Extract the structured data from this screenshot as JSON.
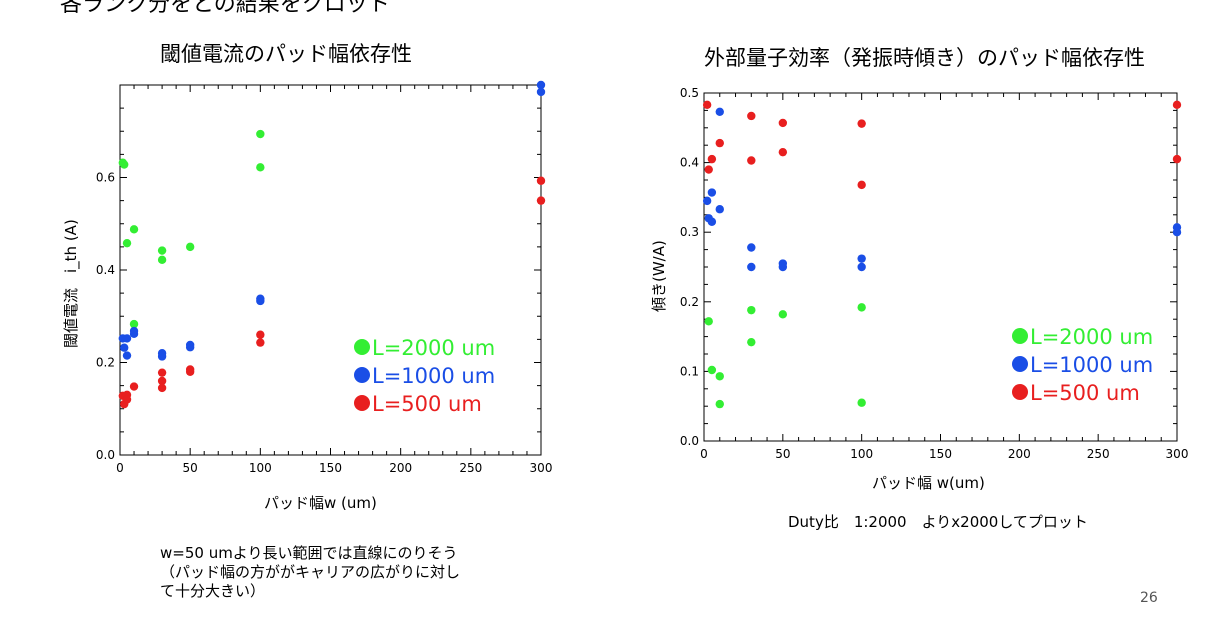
{
  "slide": {
    "top_fragment": "各ランク分をとの結果をクロット",
    "page_number": "26",
    "note_left": [
      "w=50 umより長い範囲では直線にのりそう",
      "（パッド幅の方ががキャリアの広がりに対し",
      "て十分大きい）"
    ],
    "note_right": "Duty比　1:2000　よりx2000してプロット"
  },
  "chart_data": [
    {
      "type": "scatter",
      "title": "閾値電流のパッド幅依存性",
      "xlabel": "パッド幅w (um)",
      "ylabel": "閾値電流　i_th (A)",
      "xlim": [
        0,
        300
      ],
      "ylim": [
        0,
        0.8
      ],
      "xticks": [
        0,
        50,
        100,
        150,
        200,
        250,
        300
      ],
      "yticks": [
        0.0,
        0.2,
        0.4,
        0.6
      ],
      "ytick_labels": [
        "0.0",
        "0.2",
        "0.4",
        "0.6"
      ],
      "grid": false,
      "legend_position": "bottom-right",
      "series": [
        {
          "name": "L=2000 um",
          "color": "#33ee33",
          "x": [
            2,
            3,
            5,
            10,
            10,
            30,
            30,
            50,
            100,
            100
          ],
          "y": [
            0.632,
            0.628,
            0.458,
            0.488,
            0.283,
            0.442,
            0.422,
            0.45,
            0.694,
            0.622
          ]
        },
        {
          "name": "L=1000 um",
          "color": "#1a4ee6",
          "x": [
            2,
            3,
            5,
            5,
            10,
            10,
            30,
            30,
            50,
            50,
            100,
            100,
            300,
            300
          ],
          "y": [
            0.252,
            0.232,
            0.252,
            0.215,
            0.268,
            0.262,
            0.22,
            0.213,
            0.238,
            0.233,
            0.338,
            0.333,
            0.8,
            0.785
          ]
        },
        {
          "name": "L=500 um",
          "color": "#e81f1f",
          "x": [
            2,
            3,
            5,
            5,
            10,
            30,
            30,
            30,
            50,
            50,
            100,
            100,
            300,
            300
          ],
          "y": [
            0.128,
            0.11,
            0.13,
            0.12,
            0.148,
            0.178,
            0.16,
            0.145,
            0.185,
            0.18,
            0.26,
            0.243,
            0.593,
            0.55
          ]
        }
      ]
    },
    {
      "type": "scatter",
      "title": "外部量子効率（発振時傾き）のパッド幅依存性",
      "xlabel": "パッド幅 w(um)",
      "ylabel": "傾き(W/A)",
      "xlim": [
        0,
        300
      ],
      "ylim": [
        0,
        0.5
      ],
      "xticks": [
        0,
        50,
        100,
        150,
        200,
        250,
        300
      ],
      "yticks": [
        0.0,
        0.1,
        0.2,
        0.3,
        0.4,
        0.5
      ],
      "ytick_labels": [
        "0.0",
        "0.1",
        "0.2",
        "0.3",
        "0.4",
        "0.5"
      ],
      "grid": false,
      "legend_position": "bottom-right",
      "series": [
        {
          "name": "L=2000 um",
          "color": "#33ee33",
          "x": [
            3,
            5,
            10,
            10,
            30,
            30,
            50,
            100,
            100
          ],
          "y": [
            0.172,
            0.102,
            0.093,
            0.053,
            0.188,
            0.142,
            0.182,
            0.192,
            0.055
          ]
        },
        {
          "name": "L=1000 um",
          "color": "#1a4ee6",
          "x": [
            2,
            3,
            5,
            5,
            10,
            10,
            30,
            30,
            50,
            50,
            100,
            100,
            300,
            300
          ],
          "y": [
            0.345,
            0.32,
            0.357,
            0.315,
            0.473,
            0.333,
            0.278,
            0.25,
            0.255,
            0.25,
            0.262,
            0.25,
            0.307,
            0.3
          ]
        },
        {
          "name": "L=500 um",
          "color": "#e81f1f",
          "x": [
            2,
            3,
            5,
            10,
            30,
            30,
            50,
            50,
            100,
            100,
            300,
            300
          ],
          "y": [
            0.483,
            0.39,
            0.405,
            0.428,
            0.467,
            0.403,
            0.457,
            0.415,
            0.456,
            0.368,
            0.483,
            0.405
          ]
        }
      ]
    }
  ]
}
